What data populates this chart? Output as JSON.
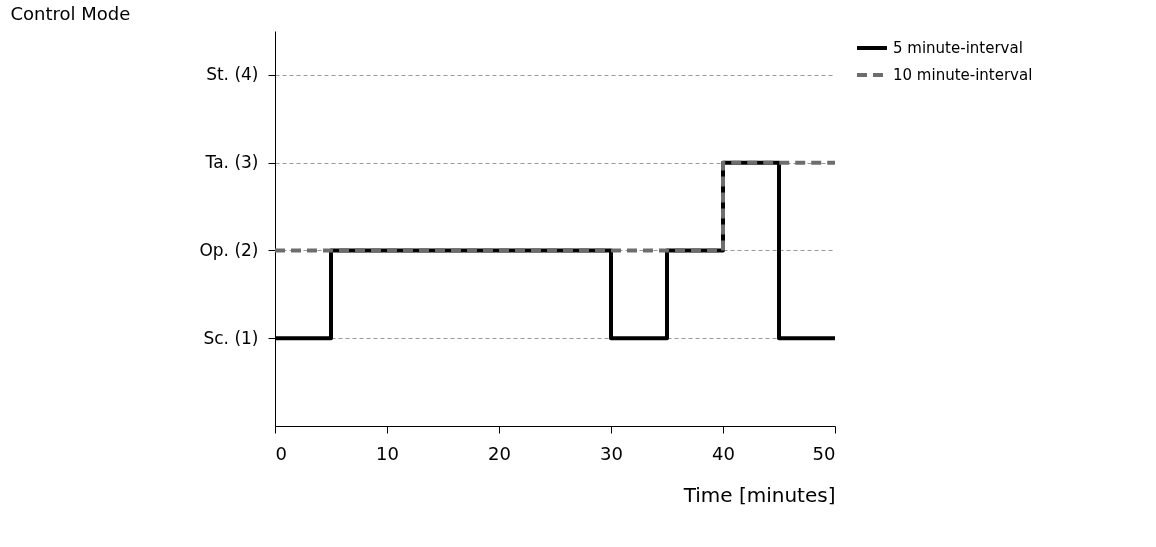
{
  "chart_data": {
    "type": "step",
    "ylabel": "Control Mode",
    "xlabel": "Time [minutes]",
    "xlim": [
      0,
      50
    ],
    "xticks": [
      0,
      10,
      20,
      30,
      40,
      50
    ],
    "ylim": [
      0,
      4.5
    ],
    "yticks": [
      {
        "value": 1,
        "label": "Sc. (1)"
      },
      {
        "value": 2,
        "label": "Op. (2)"
      },
      {
        "value": 3,
        "label": "Ta. (3)"
      },
      {
        "value": 4,
        "label": "St. (4)"
      }
    ],
    "grid": "y",
    "legend": "right",
    "series": [
      {
        "name": "5 minute-interval",
        "color": "#000000",
        "line_style": "solid",
        "x": [
          0,
          5,
          30,
          35,
          40,
          45,
          50
        ],
        "values": [
          1,
          2,
          1,
          2,
          3,
          1,
          1
        ]
      },
      {
        "name": "10 minute-interval",
        "color": "#6d6d6d",
        "line_style": "dashed",
        "x": [
          0,
          40,
          50
        ],
        "values": [
          2,
          3,
          3
        ]
      }
    ]
  }
}
